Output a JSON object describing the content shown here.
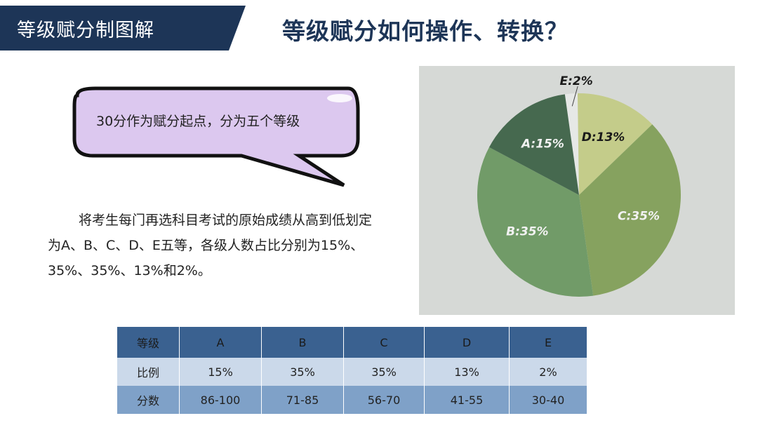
{
  "header": {
    "banner_text": "等级赋分制图解",
    "title": "等级赋分如何操作、转换？"
  },
  "bubble": {
    "text": "30分作为赋分起点，分为五个等级"
  },
  "description": "将考生每门再选科目考试的原始成绩从高到低划定为A、B、C、D、E五等，各级人数占比分别为15%、35%、35%、13%和2%。",
  "table": {
    "header": [
      "等级",
      "A",
      "B",
      "C",
      "D",
      "E"
    ],
    "rows": [
      [
        "比例",
        "15%",
        "35%",
        "35%",
        "13%",
        "2%"
      ],
      [
        "分数",
        "86-100",
        "71-85",
        "56-70",
        "41-55",
        "30-40"
      ]
    ]
  },
  "colors": {
    "navy": "#1d3557",
    "bubble_fill": "#dcc8ef",
    "table_header": "#3a6190",
    "table_row1": "#cbd9ea",
    "table_row2": "#7fa1c8"
  },
  "chart_data": {
    "type": "pie",
    "slices": [
      {
        "label": "E:2%",
        "category": "E",
        "value": 2,
        "color": "#e6e8e6",
        "text_color": "#1a1a1a"
      },
      {
        "label": "D:13%",
        "category": "D",
        "value": 13,
        "color": "#c4cc8a",
        "text_color": "#1a1a1a"
      },
      {
        "label": "C:35%",
        "category": "C",
        "value": 35,
        "color": "#86a25f",
        "text_color": "#f2f2f2"
      },
      {
        "label": "B:35%",
        "category": "B",
        "value": 35,
        "color": "#719b68",
        "text_color": "#f2f2f2"
      },
      {
        "label": "A:15%",
        "category": "A",
        "value": 15,
        "color": "#46694f",
        "text_color": "#f2f2f2"
      }
    ],
    "start_angle_deg": -8,
    "direction": "clockwise"
  }
}
